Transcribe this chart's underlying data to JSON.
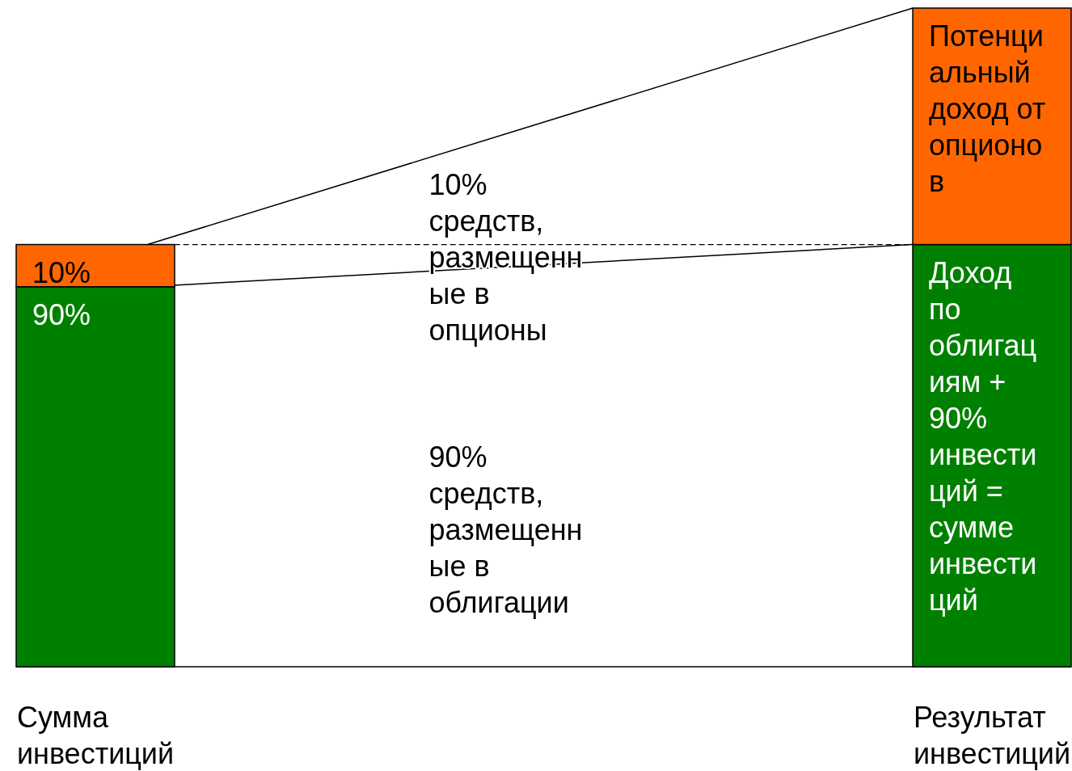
{
  "chart_data": {
    "type": "bar",
    "stacked": true,
    "categories": [
      "Сумма инвестиций",
      "Результат инвестиций"
    ],
    "series": [
      {
        "color": "#008000",
        "values": [
          90,
          100
        ],
        "value_labels": [
          "90%",
          null
        ]
      },
      {
        "color": "#ff6600",
        "values": [
          10,
          56
        ],
        "value_labels": [
          "10%",
          null
        ]
      }
    ],
    "ref_lines": [
      {
        "axis": "y",
        "value": 100,
        "line_style": "dashed"
      }
    ],
    "annotations": [
      {
        "text": "Потенциальный доход от опционов",
        "x": "Результат инвестиций",
        "y": 156
      },
      "Доход по облигациям + 90% инвестиций = сумме инвестиций",
      "10% средств, размещенные в опционы",
      "90% средств, размещенные в облигации"
    ]
  }
}
